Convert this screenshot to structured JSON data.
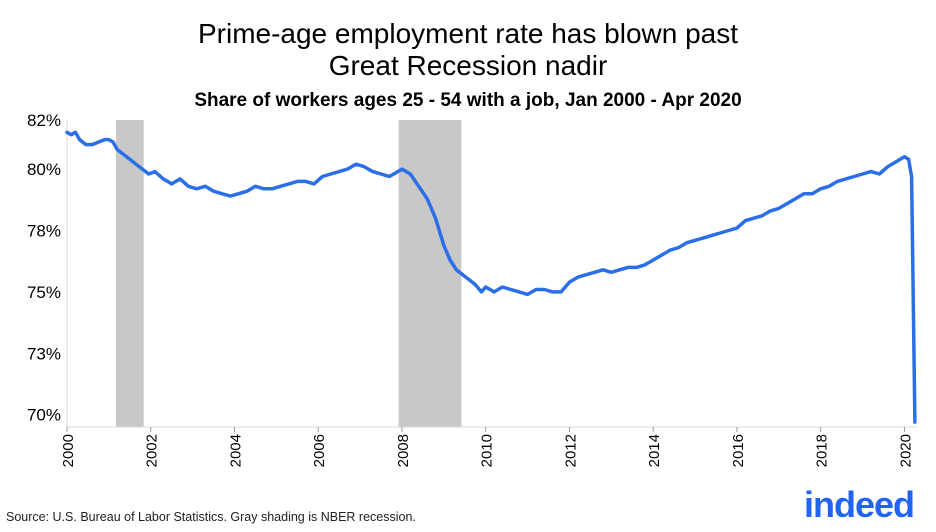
{
  "chart_data": {
    "type": "line",
    "title": "Prime-age employment rate has blown past Great Recession nadir",
    "title_lines": [
      "Prime-age employment rate has blown past",
      "Great Recession nadir"
    ],
    "subtitle": "Share of workers ages 25 - 54 with a job, Jan 2000 - Apr 2020",
    "xlabel": "",
    "ylabel": "",
    "ylim": [
      69.5,
      82
    ],
    "xlim": [
      2000,
      2020.3
    ],
    "yticks": [
      70,
      72.5,
      75,
      77.5,
      80,
      82
    ],
    "ytick_labels": [
      "70%",
      "73%",
      "75%",
      "78%",
      "80%",
      "82%"
    ],
    "xticks": [
      2000,
      2002,
      2004,
      2006,
      2008,
      2010,
      2012,
      2014,
      2016,
      2018,
      2020
    ],
    "xtick_labels": [
      "2000",
      "2002",
      "2004",
      "2006",
      "2008",
      "2010",
      "2012",
      "2014",
      "2016",
      "2018",
      "2020"
    ],
    "recessions": [
      [
        2001.17,
        2001.83
      ],
      [
        2007.92,
        2009.42
      ]
    ],
    "line_color": "#2a6ee8",
    "recession_color": "#c8c8c8",
    "series": [
      {
        "x": [
          2000.0,
          2000.1,
          2000.2,
          2000.3,
          2000.45,
          2000.6,
          2000.75,
          2000.9,
          2001.0,
          2001.1,
          2001.2,
          2001.35,
          2001.5,
          2001.65,
          2001.8,
          2001.95,
          2002.1,
          2002.3,
          2002.5,
          2002.7,
          2002.9,
          2003.1,
          2003.3,
          2003.5,
          2003.7,
          2003.9,
          2004.1,
          2004.3,
          2004.5,
          2004.7,
          2004.9,
          2005.1,
          2005.3,
          2005.5,
          2005.7,
          2005.9,
          2006.1,
          2006.3,
          2006.5,
          2006.7,
          2006.9,
          2007.1,
          2007.3,
          2007.5,
          2007.7,
          2007.9,
          2008.0,
          2008.2,
          2008.4,
          2008.6,
          2008.8,
          2009.0,
          2009.15,
          2009.3,
          2009.45,
          2009.6,
          2009.75,
          2009.9,
          2010.0,
          2010.2,
          2010.4,
          2010.6,
          2010.8,
          2011.0,
          2011.2,
          2011.4,
          2011.6,
          2011.8,
          2012.0,
          2012.2,
          2012.4,
          2012.6,
          2012.8,
          2013.0,
          2013.2,
          2013.4,
          2013.6,
          2013.8,
          2014.0,
          2014.2,
          2014.4,
          2014.6,
          2014.8,
          2015.0,
          2015.2,
          2015.4,
          2015.6,
          2015.8,
          2016.0,
          2016.2,
          2016.4,
          2016.6,
          2016.8,
          2017.0,
          2017.2,
          2017.4,
          2017.6,
          2017.8,
          2018.0,
          2018.2,
          2018.4,
          2018.6,
          2018.8,
          2019.0,
          2019.2,
          2019.4,
          2019.6,
          2019.8,
          2020.0,
          2020.1,
          2020.17,
          2020.25
        ],
        "y": [
          81.5,
          81.4,
          81.5,
          81.2,
          81.0,
          81.0,
          81.1,
          81.2,
          81.2,
          81.1,
          80.8,
          80.6,
          80.4,
          80.2,
          80.0,
          79.8,
          79.9,
          79.6,
          79.4,
          79.6,
          79.3,
          79.2,
          79.3,
          79.1,
          79.0,
          78.9,
          79.0,
          79.1,
          79.3,
          79.2,
          79.2,
          79.3,
          79.4,
          79.5,
          79.5,
          79.4,
          79.7,
          79.8,
          79.9,
          80.0,
          80.2,
          80.1,
          79.9,
          79.8,
          79.7,
          79.9,
          80.0,
          79.8,
          79.3,
          78.8,
          78.0,
          76.9,
          76.3,
          75.9,
          75.7,
          75.5,
          75.3,
          75.0,
          75.2,
          75.0,
          75.2,
          75.1,
          75.0,
          74.9,
          75.1,
          75.1,
          75.0,
          75.0,
          75.4,
          75.6,
          75.7,
          75.8,
          75.9,
          75.8,
          75.9,
          76.0,
          76.0,
          76.1,
          76.3,
          76.5,
          76.7,
          76.8,
          77.0,
          77.1,
          77.2,
          77.3,
          77.4,
          77.5,
          77.6,
          77.9,
          78.0,
          78.1,
          78.3,
          78.4,
          78.6,
          78.8,
          79.0,
          79.0,
          79.2,
          79.3,
          79.5,
          79.6,
          79.7,
          79.8,
          79.9,
          79.8,
          80.1,
          80.3,
          80.5,
          80.4,
          79.7,
          69.7
        ]
      }
    ]
  },
  "footer": {
    "source": "Source: U.S. Bureau of Labor Statistics. Gray shading is NBER recession.",
    "logo_text": "indeed"
  }
}
